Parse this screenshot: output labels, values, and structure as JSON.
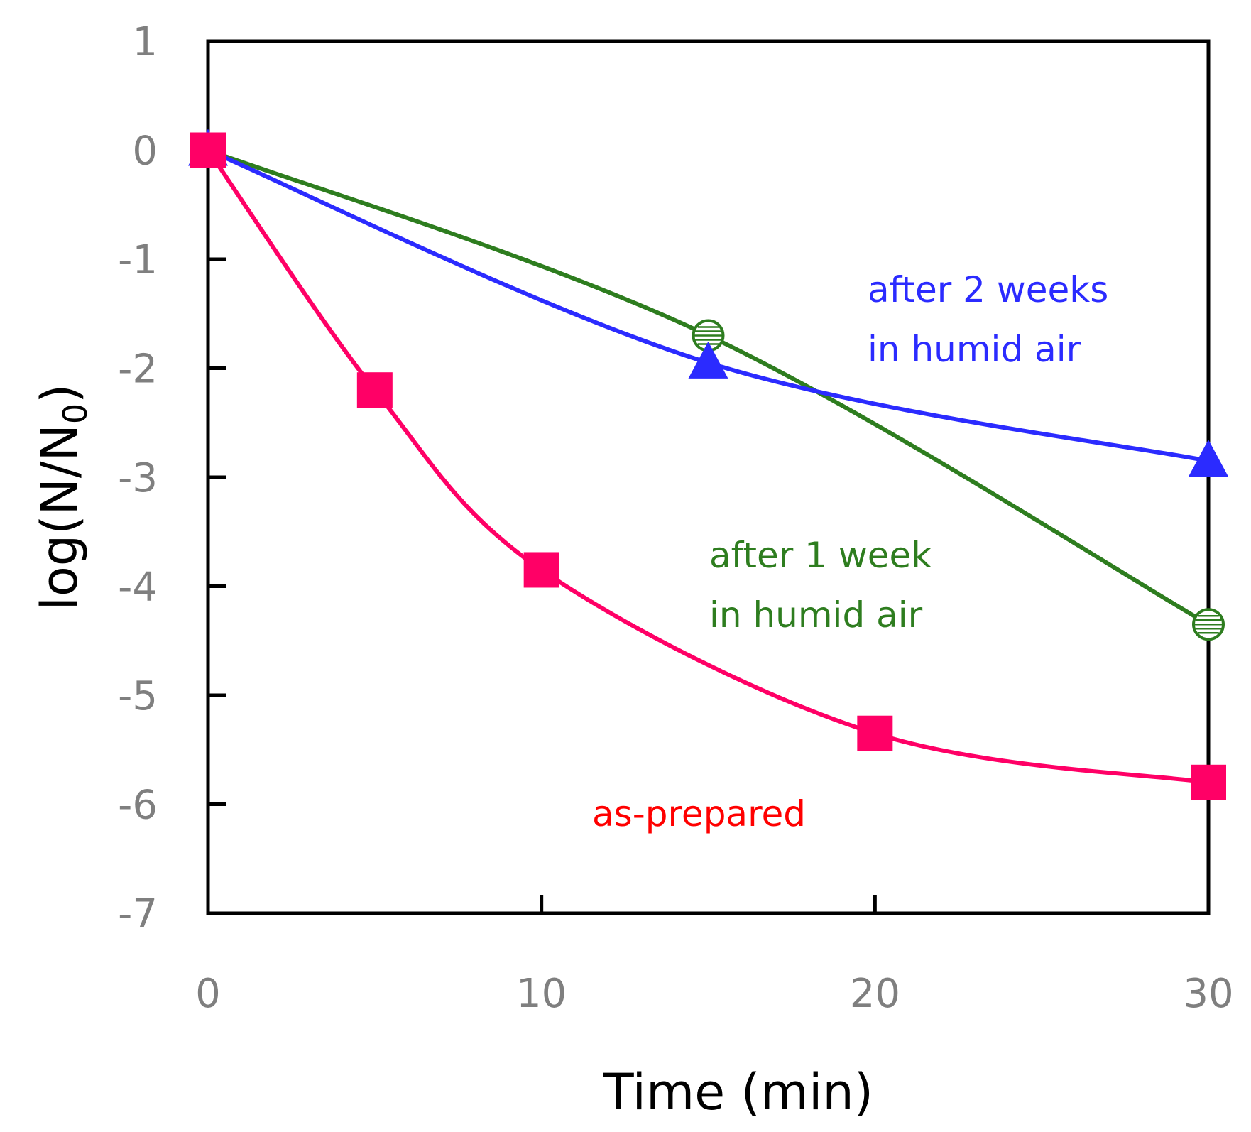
{
  "chart_data": {
    "type": "line",
    "title": "",
    "xlabel": "Time (min)",
    "ylabel_main": "log(N/N",
    "ylabel_sub": "0",
    "ylabel_close": ")",
    "xlim": [
      0,
      30
    ],
    "ylim": [
      -7,
      1
    ],
    "xticks": [
      0,
      10,
      20,
      30
    ],
    "yticks": [
      1,
      0,
      -1,
      -2,
      -3,
      -4,
      -5,
      -6,
      -7
    ],
    "grid": false,
    "series": [
      {
        "name": "as-prepared",
        "color": "#ff0066",
        "marker": "square",
        "x": [
          0,
          5,
          10,
          20,
          30
        ],
        "y": [
          0,
          -2.2,
          -3.85,
          -5.35,
          -5.8
        ]
      },
      {
        "name": "after 1 week in humid air",
        "color": "#2e7d1f",
        "marker": "circle-hatched",
        "x": [
          0,
          15,
          30
        ],
        "y": [
          0,
          -1.7,
          -4.35
        ]
      },
      {
        "name": "after 2 weeks in humid air",
        "color": "#2b2bff",
        "marker": "triangle",
        "x": [
          0,
          15,
          30
        ],
        "y": [
          0,
          -1.95,
          -2.85
        ]
      }
    ],
    "annotations": [
      {
        "lines": [
          "after 2 weeks",
          "in humid air"
        ],
        "color": "#2b2bff"
      },
      {
        "lines": [
          "after 1 week",
          "in humid air"
        ],
        "color": "#2e7d1f"
      },
      {
        "lines": [
          "as-prepared"
        ],
        "color": "#ff0000"
      }
    ]
  }
}
